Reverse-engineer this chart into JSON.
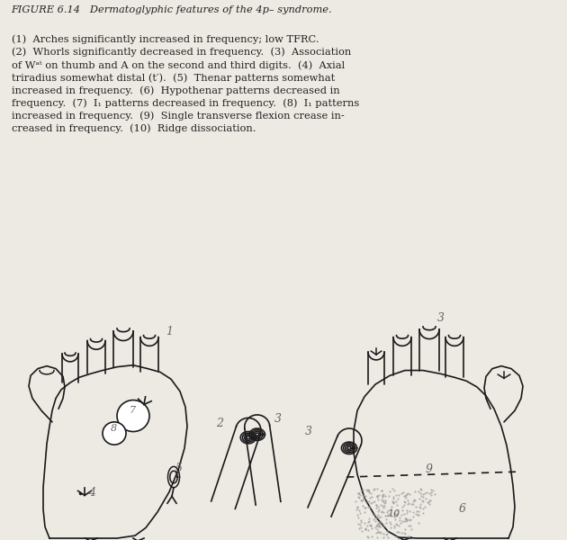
{
  "bg_color": "#ede9e3",
  "line_color": "#1a1a1a",
  "label_color": "#666666",
  "figsize": [
    6.3,
    6.0
  ],
  "dpi": 100,
  "caption_lines": [
    "FIGURE 6.14   Dermatoglyphic features of the 4p– syndrome.",
    "(1)  Arches significantly increased in frequency; low TFRC.",
    "(2)  Whorls significantly decreased in frequency.  (3)  Association",
    "of Wᵃᵗ on thumb and A on the second and third digits.  (4)  Axial",
    "triradius somewhat distal (t′).  (5)  Thenar patterns somewhat",
    "increased in frequency.  (6)  Hypothenar patterns decreased in",
    "frequency.  (7)  I₁ patterns decreased in frequency.  (8)  I₁ patterns",
    "increased in frequency.  (9)  Single transverse flexion crease in-",
    "creased in frequency.  (10)  Ridge dissociation."
  ]
}
